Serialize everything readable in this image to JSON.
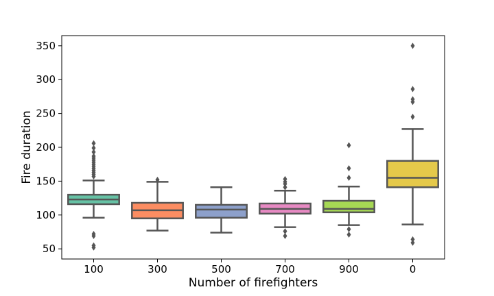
{
  "chart_data": {
    "type": "boxplot",
    "title": "",
    "xlabel": "Number of firefighters",
    "ylabel": "Fire duration",
    "ylim": [
      35,
      365
    ],
    "yticks": [
      50,
      100,
      150,
      200,
      250,
      300,
      350
    ],
    "grid": false,
    "legend": "none",
    "categories": [
      "100",
      "300",
      "500",
      "700",
      "900",
      "0"
    ],
    "boxes": [
      {
        "category": "100",
        "color": "#66c2a5",
        "whisker_low": 96,
        "q1": 116,
        "median": 123,
        "q3": 130,
        "whisker_high": 151,
        "outliers": [
          52,
          55,
          69,
          72,
          157,
          160,
          163,
          166,
          169,
          172,
          175,
          178,
          181,
          184,
          187,
          193,
          199,
          206
        ]
      },
      {
        "category": "300",
        "color": "#fc8d62",
        "whisker_low": 77,
        "q1": 95,
        "median": 107,
        "q3": 118,
        "whisker_high": 149,
        "outliers": [
          152
        ]
      },
      {
        "category": "500",
        "color": "#8da0cb",
        "whisker_low": 74,
        "q1": 96,
        "median": 108,
        "q3": 115,
        "whisker_high": 141,
        "outliers": []
      },
      {
        "category": "700",
        "color": "#e78ac3",
        "whisker_low": 82,
        "q1": 102,
        "median": 109,
        "q3": 117,
        "whisker_high": 136,
        "outliers": [
          69,
          76,
          141,
          146,
          149,
          153
        ]
      },
      {
        "category": "900",
        "color": "#a6d854",
        "whisker_low": 85,
        "q1": 104,
        "median": 109,
        "q3": 121,
        "whisker_high": 142,
        "outliers": [
          71,
          79,
          155,
          169,
          203
        ]
      },
      {
        "category": "0",
        "color": "#e5c94a",
        "whisker_low": 86,
        "q1": 141,
        "median": 155,
        "q3": 180,
        "whisker_high": 227,
        "outliers": [
          59,
          64,
          245,
          267,
          271,
          286,
          350
        ]
      }
    ],
    "line_color": "#555555",
    "frame_color": "#000000"
  }
}
